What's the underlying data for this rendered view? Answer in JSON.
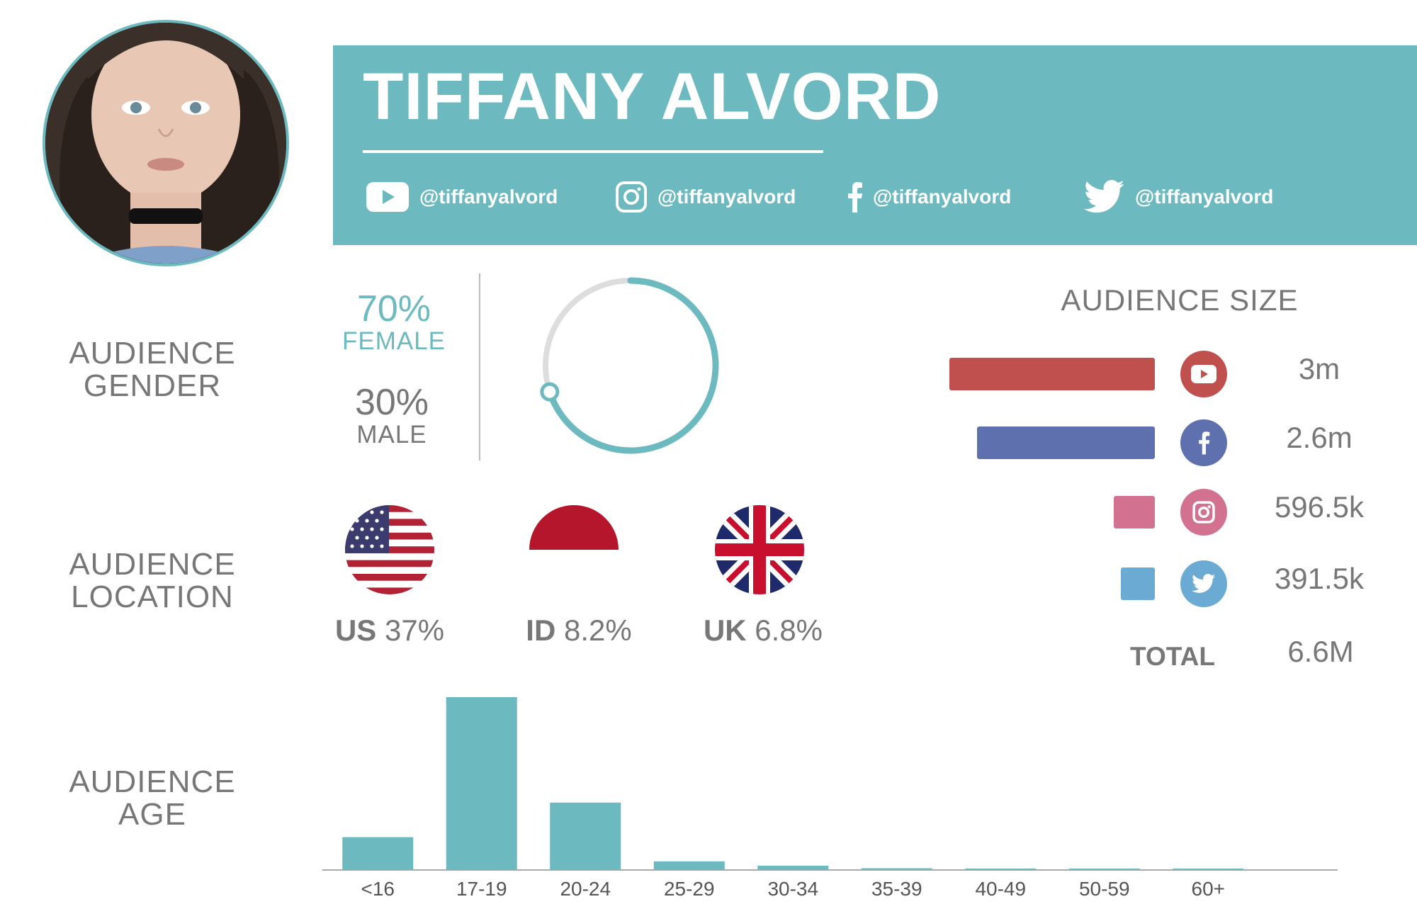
{
  "header": {
    "name": "TIFFANY ALVORD",
    "handles": [
      {
        "icon": "youtube-icon",
        "text": "@tiffanyalvord"
      },
      {
        "icon": "instagram-icon",
        "text": "@tiffanyalvord"
      },
      {
        "icon": "facebook-icon",
        "text": "@tiffanyalvord"
      },
      {
        "icon": "twitter-icon",
        "text": "@tiffanyalvord"
      }
    ]
  },
  "colors": {
    "accent": "#6cbabf",
    "youtube": "#c0504d",
    "facebook": "#5e71ae",
    "instagram": "#d37290",
    "twitter": "#6aaad3",
    "ring_track": "#dddddd"
  },
  "gender": {
    "label_line1": "AUDIENCE",
    "label_line2": "GENDER",
    "female_pct": "70%",
    "female_label": "FEMALE",
    "male_pct": "30%",
    "male_label": "MALE",
    "female_fraction": 0.7
  },
  "location": {
    "label_line1": "AUDIENCE",
    "label_line2": "LOCATION",
    "countries": [
      {
        "code": "US",
        "pct": "37%",
        "flag": "us-flag-icon"
      },
      {
        "code": "ID",
        "pct": "8.2%",
        "flag": "indonesia-flag-icon"
      },
      {
        "code": "UK",
        "pct": "6.8%",
        "flag": "uk-flag-icon"
      }
    ]
  },
  "audience_size": {
    "title": "AUDIENCE SIZE",
    "platforms": [
      {
        "name": "youtube",
        "icon": "youtube-icon",
        "display": "3m",
        "value": 3.0
      },
      {
        "name": "facebook",
        "icon": "facebook-icon",
        "display": "2.6m",
        "value": 2.6
      },
      {
        "name": "instagram",
        "icon": "instagram-icon",
        "display": "596.5k",
        "value": 0.5965
      },
      {
        "name": "twitter",
        "icon": "twitter-icon",
        "display": "391.5k",
        "value": 0.3915
      }
    ],
    "total_label": "TOTAL",
    "total_value": "6.6M"
  },
  "age": {
    "label_line1": "AUDIENCE",
    "label_line2": "AGE"
  },
  "chart_data": {
    "type": "bar",
    "categories": [
      "<16",
      "17-19",
      "20-24",
      "25-29",
      "30-34",
      "35-39",
      "40-49",
      "50-59",
      "60+"
    ],
    "values": [
      19,
      100,
      39,
      5,
      2.5,
      1,
      0.8,
      0.5,
      0.5
    ],
    "title": "",
    "xlabel": "",
    "ylabel": "",
    "ylim": [
      0,
      100
    ],
    "grid": false
  }
}
